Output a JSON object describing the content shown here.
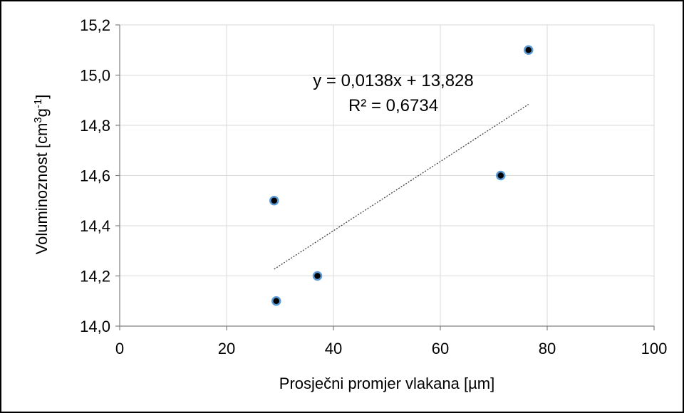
{
  "chart_data": {
    "type": "scatter",
    "title": "",
    "xlabel": "Prosječni promjer vlakana [µm]",
    "ylabel": {
      "base": "Voluminoznost  [cm",
      "sup1": "3",
      "mid": "g",
      "sup2": "-1",
      "end": "]"
    },
    "xlim": [
      0,
      100
    ],
    "ylim": [
      14.0,
      15.2
    ],
    "x_ticks": [
      0,
      20,
      40,
      60,
      80,
      100
    ],
    "x_tick_labels": [
      "0",
      "20",
      "40",
      "60",
      "80",
      "100"
    ],
    "y_ticks": [
      14.0,
      14.2,
      14.4,
      14.6,
      14.8,
      15.0,
      15.2
    ],
    "y_tick_labels": [
      "14,0",
      "14,2",
      "14,4",
      "14,6",
      "14,8",
      "15,0",
      "15,2"
    ],
    "grid": true,
    "series": [
      {
        "points": [
          {
            "x": 28.9,
            "y": 14.5
          },
          {
            "x": 29.3,
            "y": 14.1
          },
          {
            "x": 37.0,
            "y": 14.2
          },
          {
            "x": 71.3,
            "y": 14.6
          },
          {
            "x": 76.5,
            "y": 15.1
          }
        ],
        "marker_fill": "#000000",
        "marker_edge": "#5b9bd5"
      }
    ],
    "trendline": {
      "slope": 0.0138,
      "intercept": 13.828,
      "x_range": [
        28.9,
        76.5
      ],
      "color": "#404040"
    },
    "annotations": [
      "y = 0,0138x + 13,828",
      "R² = 0,6734"
    ]
  }
}
